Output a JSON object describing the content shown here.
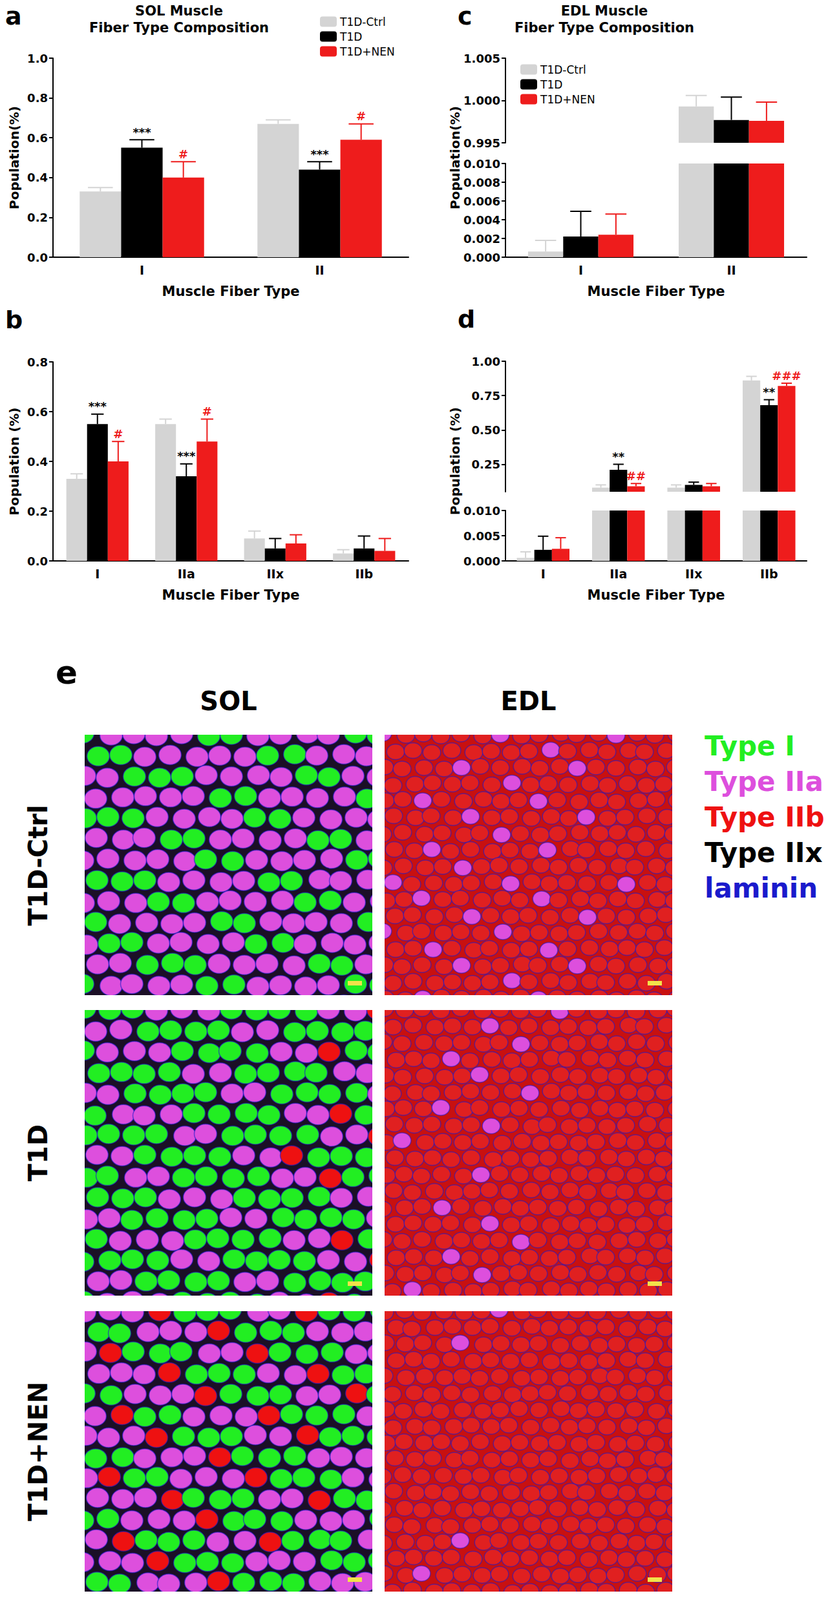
{
  "chart_data": [
    {
      "panel": "a",
      "type": "bar",
      "title": "SOL Muscle\nFiber Type Composition",
      "x_label": "Muscle Fiber Type",
      "y_label": "Population(%)",
      "categories": [
        "I",
        "II"
      ],
      "series": [
        {
          "name": "T1D-Ctrl",
          "color": "#d4d4d4",
          "values": [
            0.33,
            0.67
          ],
          "errors": [
            0.02,
            0.02
          ]
        },
        {
          "name": "T1D",
          "color": "#000000",
          "values": [
            0.55,
            0.44
          ],
          "errors": [
            0.04,
            0.04
          ],
          "annotations": [
            "***",
            "***"
          ]
        },
        {
          "name": "T1D+NEN",
          "color": "#ee1c1c",
          "values": [
            0.4,
            0.59
          ],
          "errors": [
            0.08,
            0.08
          ],
          "annotations": [
            "#",
            "#"
          ]
        }
      ],
      "ylim": [
        0,
        1
      ],
      "yticks": [
        {
          "value": 0,
          "label": "0.0"
        },
        0.2,
        0.4,
        0.6,
        0.8,
        {
          "value": 1,
          "label": "1.0"
        }
      ],
      "legend": "upper right"
    },
    {
      "panel": "b",
      "type": "bar",
      "x_label": "Muscle Fiber Type",
      "y_label": "Population (%)",
      "categories": [
        "I",
        "IIa",
        "IIx",
        "IIb"
      ],
      "series": [
        {
          "name": "T1D-Ctrl",
          "color": "#d4d4d4",
          "values": [
            0.33,
            0.55,
            0.09,
            0.03
          ],
          "errors": [
            0.02,
            0.02,
            0.03,
            0.015
          ]
        },
        {
          "name": "T1D",
          "color": "#000000",
          "values": [
            0.55,
            0.34,
            0.05,
            0.05
          ],
          "errors": [
            0.04,
            0.05,
            0.04,
            0.05
          ],
          "annotations": [
            "***",
            "***",
            null,
            null
          ]
        },
        {
          "name": "T1D+NEN",
          "color": "#ee1c1c",
          "values": [
            0.4,
            0.48,
            0.07,
            0.04
          ],
          "errors": [
            0.08,
            0.09,
            0.035,
            0.05
          ],
          "annotations": [
            "#",
            "#",
            null,
            null
          ]
        }
      ],
      "ylim": [
        0,
        0.8
      ],
      "yticks": [
        {
          "value": 0,
          "label": "0.0"
        },
        0.2,
        0.4,
        0.6,
        0.8
      ]
    },
    {
      "panel": "c",
      "type": "bar",
      "title": "EDL Muscle\nFiber Type Composition",
      "x_label": "Muscle Fiber Type",
      "y_label": "Population(%)",
      "categories": [
        "I",
        "II"
      ],
      "series": [
        {
          "name": "T1D-Ctrl",
          "color": "#d4d4d4",
          "values": [
            0.0006,
            0.9993
          ],
          "errors": [
            0.0012,
            0.0013
          ]
        },
        {
          "name": "T1D",
          "color": "#000000",
          "values": [
            0.0022,
            0.9977
          ],
          "errors": [
            0.0027,
            0.0027
          ]
        },
        {
          "name": "T1D+NEN",
          "color": "#ee1c1c",
          "values": [
            0.0024,
            0.9976
          ],
          "errors": [
            0.0022,
            0.0022
          ]
        }
      ],
      "ylim": [
        [
          0,
          0.01
        ],
        [
          0.995,
          1.005
        ]
      ],
      "yticks": [
        [
          {
            "value": 0,
            "label": "0.000"
          },
          0.002,
          0.004,
          0.006,
          0.008,
          {
            "value": 0.01,
            "label": "0.010"
          }
        ],
        [
          0.995,
          {
            "value": 1,
            "label": "1.000"
          },
          1.005
        ]
      ],
      "legend": "upper left"
    },
    {
      "panel": "d",
      "type": "bar",
      "x_label": "Muscle Fiber Type",
      "y_label": "Population (%)",
      "categories": [
        "I",
        "IIa",
        "IIx",
        "IIb"
      ],
      "series": [
        {
          "name": "T1D-Ctrl",
          "color": "#d4d4d4",
          "values": [
            0.0006,
            0.08,
            0.08,
            0.86
          ],
          "errors": [
            0.0012,
            0.02,
            0.02,
            0.03
          ]
        },
        {
          "name": "T1D",
          "color": "#000000",
          "values": [
            0.0022,
            0.21,
            0.1,
            0.68
          ],
          "errors": [
            0.0027,
            0.04,
            0.02,
            0.04
          ],
          "annotations": [
            null,
            "**",
            null,
            "**"
          ]
        },
        {
          "name": "T1D+NEN",
          "color": "#ee1c1c",
          "values": [
            0.0024,
            0.09,
            0.09,
            0.82
          ],
          "errors": [
            0.0022,
            0.02,
            0.02,
            0.02
          ],
          "annotations": [
            null,
            "##",
            null,
            "###"
          ]
        }
      ],
      "ylim": [
        [
          0,
          0.01
        ],
        [
          0.05,
          1
        ]
      ],
      "yticks": [
        [
          {
            "value": 0,
            "label": "0.000"
          },
          0.005,
          {
            "value": 0.01,
            "label": "0.010"
          }
        ],
        [
          0.25,
          {
            "value": 0.5,
            "label": "0.50"
          },
          0.75,
          {
            "value": 1,
            "label": "1.00"
          }
        ]
      ]
    }
  ],
  "image_panel": {
    "panel": "e",
    "columns": [
      "SOL",
      "EDL"
    ],
    "rows": [
      "T1D-Ctrl",
      "T1D",
      "T1D+NEN"
    ],
    "stain_legend": [
      {
        "label": "Type I",
        "color": "#22ee22"
      },
      {
        "label": "Type IIa",
        "color": "#dd4fdd"
      },
      {
        "label": "Type IIb",
        "color": "#ee1111"
      },
      {
        "label": "Type IIx",
        "color": "#000000"
      },
      {
        "label": "laminin",
        "color": "#1a1acc"
      }
    ]
  }
}
